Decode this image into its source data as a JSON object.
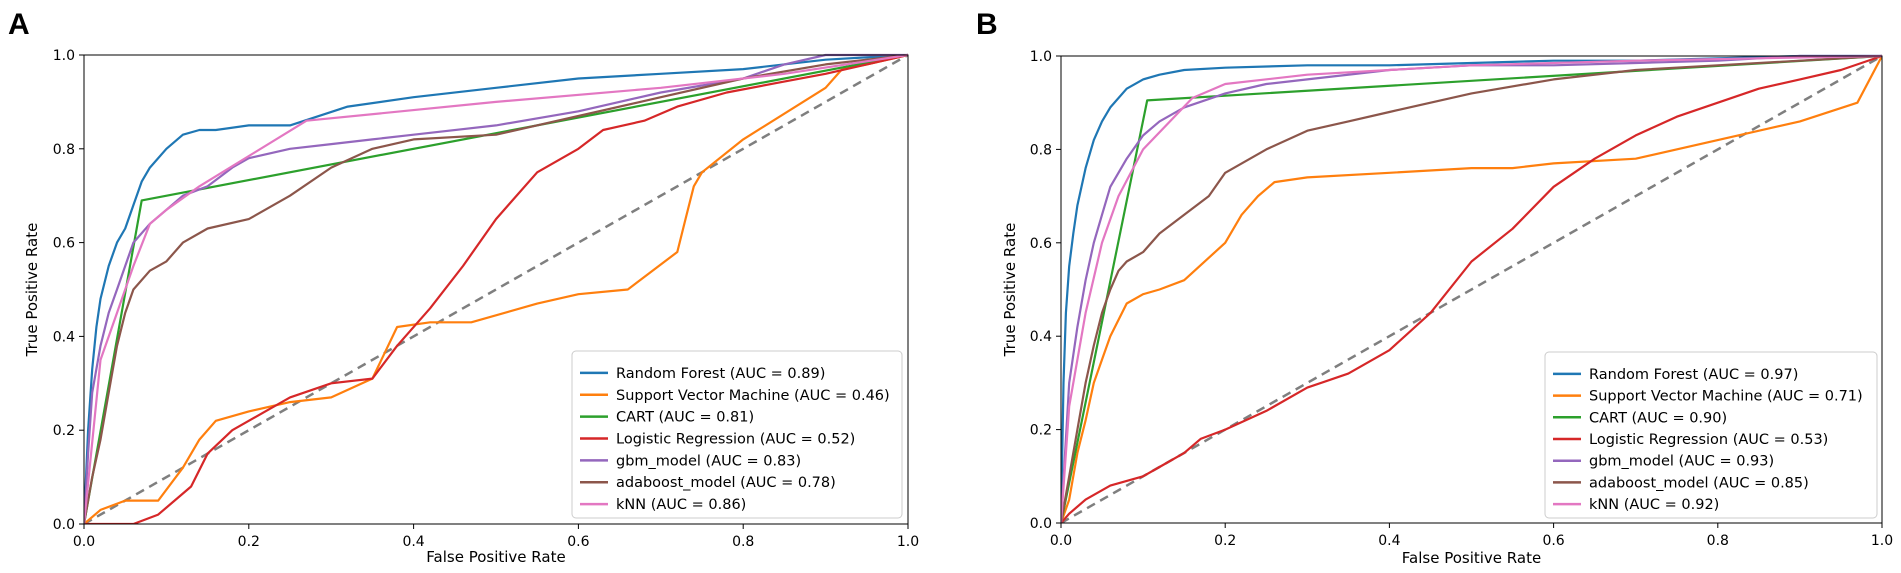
{
  "chart_data": [
    {
      "type": "line",
      "panel_label": "A",
      "xlabel": "False Positive Rate",
      "ylabel": "True Positive Rate",
      "xlim": [
        0,
        1
      ],
      "ylim": [
        0,
        1
      ],
      "x_ticks": [
        "0.0",
        "0.2",
        "0.4",
        "0.6",
        "0.8",
        "1.0"
      ],
      "y_ticks": [
        "0.0",
        "0.2",
        "0.4",
        "0.6",
        "0.8",
        "1.0"
      ],
      "legend_position": "lower-right",
      "reference_line": {
        "name": "chance",
        "x": [
          0,
          1
        ],
        "y": [
          0,
          1
        ],
        "style": "dashed",
        "color": "#7f7f7f"
      },
      "series": [
        {
          "name": "Random Forest (AUC = 0.89)",
          "color": "#1f77b4",
          "x": [
            0,
            0.005,
            0.01,
            0.015,
            0.02,
            0.03,
            0.04,
            0.05,
            0.06,
            0.07,
            0.08,
            0.1,
            0.12,
            0.14,
            0.16,
            0.2,
            0.25,
            0.32,
            0.4,
            0.5,
            0.6,
            0.7,
            0.8,
            0.9,
            1.0
          ],
          "y": [
            0,
            0.2,
            0.33,
            0.42,
            0.48,
            0.55,
            0.6,
            0.63,
            0.68,
            0.73,
            0.76,
            0.8,
            0.83,
            0.84,
            0.84,
            0.85,
            0.85,
            0.89,
            0.91,
            0.93,
            0.95,
            0.96,
            0.97,
            0.99,
            1.0
          ]
        },
        {
          "name": "Support Vector Machine (AUC = 0.46)",
          "color": "#ff7f0e",
          "x": [
            0,
            0.02,
            0.05,
            0.09,
            0.12,
            0.14,
            0.16,
            0.2,
            0.25,
            0.3,
            0.35,
            0.38,
            0.42,
            0.47,
            0.55,
            0.6,
            0.66,
            0.72,
            0.73,
            0.74,
            0.75,
            0.8,
            0.9,
            0.92,
            0.95,
            1.0
          ],
          "y": [
            0,
            0.03,
            0.05,
            0.05,
            0.12,
            0.18,
            0.22,
            0.24,
            0.26,
            0.27,
            0.31,
            0.42,
            0.43,
            0.43,
            0.47,
            0.49,
            0.5,
            0.58,
            0.65,
            0.72,
            0.75,
            0.82,
            0.93,
            0.97,
            0.98,
            1.0
          ]
        },
        {
          "name": "CART (AUC = 0.81)",
          "color": "#2ca02c",
          "x": [
            0,
            0.07,
            1.0
          ],
          "y": [
            0,
            0.69,
            1.0
          ]
        },
        {
          "name": "Logistic Regression (AUC = 0.52)",
          "color": "#d62728",
          "x": [
            0,
            0.03,
            0.06,
            0.09,
            0.13,
            0.15,
            0.18,
            0.22,
            0.25,
            0.3,
            0.35,
            0.38,
            0.42,
            0.46,
            0.5,
            0.55,
            0.6,
            0.63,
            0.68,
            0.72,
            0.78,
            0.84,
            0.9,
            0.95,
            1.0
          ],
          "y": [
            0,
            0.0,
            0.0,
            0.02,
            0.08,
            0.15,
            0.2,
            0.24,
            0.27,
            0.3,
            0.31,
            0.38,
            0.46,
            0.55,
            0.65,
            0.75,
            0.8,
            0.84,
            0.86,
            0.89,
            0.92,
            0.94,
            0.96,
            0.98,
            1.0
          ]
        },
        {
          "name": "gbm_model (AUC = 0.83)",
          "color": "#9467bd",
          "x": [
            0,
            0.005,
            0.01,
            0.02,
            0.03,
            0.04,
            0.05,
            0.06,
            0.08,
            0.1,
            0.12,
            0.15,
            0.18,
            0.2,
            0.25,
            0.3,
            0.35,
            0.4,
            0.5,
            0.6,
            0.7,
            0.8,
            0.85,
            0.9,
            1.0
          ],
          "y": [
            0,
            0.15,
            0.28,
            0.38,
            0.45,
            0.5,
            0.55,
            0.6,
            0.64,
            0.67,
            0.7,
            0.72,
            0.76,
            0.78,
            0.8,
            0.81,
            0.82,
            0.83,
            0.85,
            0.88,
            0.92,
            0.95,
            0.98,
            1.0,
            1.0
          ]
        },
        {
          "name": "adaboost_model (AUC = 0.78)",
          "color": "#8c564b",
          "x": [
            0,
            0.005,
            0.01,
            0.02,
            0.03,
            0.04,
            0.05,
            0.06,
            0.08,
            0.1,
            0.12,
            0.15,
            0.2,
            0.25,
            0.3,
            0.35,
            0.4,
            0.5,
            0.6,
            0.7,
            0.8,
            0.9,
            1.0
          ],
          "y": [
            0,
            0.05,
            0.1,
            0.18,
            0.28,
            0.38,
            0.45,
            0.5,
            0.54,
            0.56,
            0.6,
            0.63,
            0.65,
            0.7,
            0.76,
            0.8,
            0.82,
            0.83,
            0.87,
            0.91,
            0.95,
            0.98,
            1.0
          ]
        },
        {
          "name": "kNN (AUC = 0.86)",
          "color": "#e377c2",
          "x": [
            0,
            0.02,
            0.04,
            0.06,
            0.08,
            0.1,
            0.14,
            0.27,
            0.5,
            0.7,
            0.85,
            1.0
          ],
          "y": [
            0,
            0.35,
            0.45,
            0.55,
            0.64,
            0.67,
            0.72,
            0.86,
            0.9,
            0.93,
            0.96,
            1.0
          ]
        }
      ]
    },
    {
      "type": "line",
      "panel_label": "B",
      "xlabel": "False Positive Rate",
      "ylabel": "True Positive Rate",
      "xlim": [
        0,
        1
      ],
      "ylim": [
        0,
        1
      ],
      "x_ticks": [
        "0.0",
        "0.2",
        "0.4",
        "0.6",
        "0.8",
        "1.0"
      ],
      "y_ticks": [
        "0.0",
        "0.2",
        "0.4",
        "0.6",
        "0.8",
        "1.0"
      ],
      "legend_position": "lower-right",
      "reference_line": {
        "name": "chance",
        "x": [
          0,
          1
        ],
        "y": [
          0,
          1
        ],
        "style": "dashed",
        "color": "#7f7f7f"
      },
      "series": [
        {
          "name": "Random Forest (AUC = 0.97)",
          "color": "#1f77b4",
          "x": [
            0,
            0.003,
            0.006,
            0.01,
            0.015,
            0.02,
            0.03,
            0.04,
            0.05,
            0.06,
            0.08,
            0.1,
            0.12,
            0.15,
            0.2,
            0.3,
            0.4,
            0.5,
            0.6,
            0.7,
            0.8,
            0.9,
            1.0
          ],
          "y": [
            0,
            0.3,
            0.45,
            0.55,
            0.62,
            0.68,
            0.76,
            0.82,
            0.86,
            0.89,
            0.93,
            0.95,
            0.96,
            0.97,
            0.975,
            0.98,
            0.98,
            0.985,
            0.99,
            0.99,
            0.995,
            1.0,
            1.0
          ]
        },
        {
          "name": "Support Vector Machine (AUC = 0.71)",
          "color": "#ff7f0e",
          "x": [
            0,
            0.01,
            0.02,
            0.03,
            0.04,
            0.05,
            0.06,
            0.08,
            0.1,
            0.12,
            0.15,
            0.2,
            0.22,
            0.24,
            0.26,
            0.3,
            0.4,
            0.5,
            0.55,
            0.6,
            0.7,
            0.8,
            0.9,
            0.97,
            1.0
          ],
          "y": [
            0,
            0.05,
            0.15,
            0.22,
            0.3,
            0.35,
            0.4,
            0.47,
            0.49,
            0.5,
            0.52,
            0.6,
            0.66,
            0.7,
            0.73,
            0.74,
            0.75,
            0.76,
            0.76,
            0.77,
            0.78,
            0.82,
            0.86,
            0.9,
            1.0
          ]
        },
        {
          "name": "CART (AUC = 0.90)",
          "color": "#2ca02c",
          "x": [
            0,
            0.105,
            1.0
          ],
          "y": [
            0,
            0.905,
            1.0
          ]
        },
        {
          "name": "Logistic Regression (AUC = 0.53)",
          "color": "#d62728",
          "x": [
            0,
            0.01,
            0.03,
            0.06,
            0.1,
            0.12,
            0.15,
            0.17,
            0.2,
            0.25,
            0.3,
            0.35,
            0.4,
            0.45,
            0.5,
            0.55,
            0.6,
            0.65,
            0.7,
            0.75,
            0.8,
            0.85,
            0.9,
            0.95,
            1.0
          ],
          "y": [
            0,
            0.02,
            0.05,
            0.08,
            0.1,
            0.12,
            0.15,
            0.18,
            0.2,
            0.24,
            0.29,
            0.32,
            0.37,
            0.45,
            0.56,
            0.63,
            0.72,
            0.78,
            0.83,
            0.87,
            0.9,
            0.93,
            0.95,
            0.97,
            1.0
          ]
        },
        {
          "name": "gbm_model (AUC = 0.93)",
          "color": "#9467bd",
          "x": [
            0,
            0.005,
            0.01,
            0.02,
            0.03,
            0.04,
            0.05,
            0.06,
            0.08,
            0.1,
            0.12,
            0.15,
            0.2,
            0.25,
            0.3,
            0.4,
            0.5,
            0.6,
            0.7,
            0.8,
            0.9,
            1.0
          ],
          "y": [
            0,
            0.15,
            0.3,
            0.42,
            0.52,
            0.6,
            0.66,
            0.72,
            0.78,
            0.83,
            0.86,
            0.89,
            0.92,
            0.94,
            0.95,
            0.97,
            0.98,
            0.98,
            0.985,
            0.99,
            1.0,
            1.0
          ]
        },
        {
          "name": "adaboost_model (AUC = 0.85)",
          "color": "#8c564b",
          "x": [
            0,
            0.01,
            0.02,
            0.03,
            0.04,
            0.05,
            0.06,
            0.07,
            0.08,
            0.1,
            0.12,
            0.15,
            0.18,
            0.2,
            0.25,
            0.3,
            0.35,
            0.4,
            0.5,
            0.6,
            0.7,
            0.8,
            0.9,
            1.0
          ],
          "y": [
            0,
            0.1,
            0.2,
            0.3,
            0.38,
            0.45,
            0.5,
            0.54,
            0.56,
            0.58,
            0.62,
            0.66,
            0.7,
            0.75,
            0.8,
            0.84,
            0.86,
            0.88,
            0.92,
            0.95,
            0.97,
            0.98,
            0.99,
            1.0
          ]
        },
        {
          "name": "kNN (AUC = 0.92)",
          "color": "#e377c2",
          "x": [
            0,
            0.01,
            0.03,
            0.05,
            0.07,
            0.1,
            0.16,
            0.2,
            0.3,
            0.5,
            0.7,
            0.85,
            1.0
          ],
          "y": [
            0,
            0.25,
            0.45,
            0.6,
            0.7,
            0.8,
            0.91,
            0.94,
            0.96,
            0.98,
            0.99,
            0.995,
            1.0
          ]
        }
      ]
    }
  ]
}
